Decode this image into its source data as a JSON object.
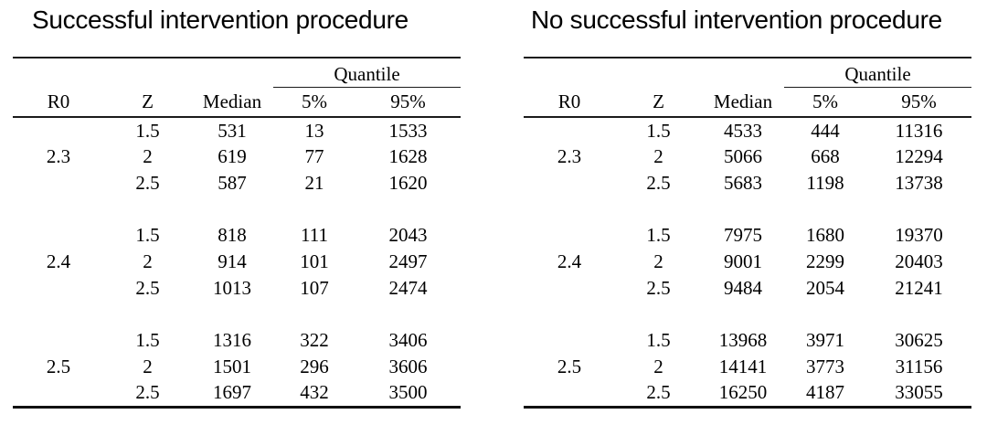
{
  "tables": [
    {
      "title": "Successful intervention procedure",
      "quantile_header": "Quantile",
      "columns": [
        "R0",
        "Z",
        "Median",
        "5%",
        "95%"
      ],
      "groups": [
        {
          "r0": "2.3",
          "rows": [
            [
              "1.5",
              "531",
              "13",
              "1533"
            ],
            [
              "2",
              "619",
              "77",
              "1628"
            ],
            [
              "2.5",
              "587",
              "21",
              "1620"
            ]
          ]
        },
        {
          "r0": "2.4",
          "rows": [
            [
              "1.5",
              "818",
              "111",
              "2043"
            ],
            [
              "2",
              "914",
              "101",
              "2497"
            ],
            [
              "2.5",
              "1013",
              "107",
              "2474"
            ]
          ]
        },
        {
          "r0": "2.5",
          "rows": [
            [
              "1.5",
              "1316",
              "322",
              "3406"
            ],
            [
              "2",
              "1501",
              "296",
              "3606"
            ],
            [
              "2.5",
              "1697",
              "432",
              "3500"
            ]
          ]
        }
      ]
    },
    {
      "title": "No successful intervention procedure",
      "quantile_header": "Quantile",
      "columns": [
        "R0",
        "Z",
        "Median",
        "5%",
        "95%"
      ],
      "groups": [
        {
          "r0": "2.3",
          "rows": [
            [
              "1.5",
              "4533",
              "444",
              "11316"
            ],
            [
              "2",
              "5066",
              "668",
              "12294"
            ],
            [
              "2.5",
              "5683",
              "1198",
              "13738"
            ]
          ]
        },
        {
          "r0": "2.4",
          "rows": [
            [
              "1.5",
              "7975",
              "1680",
              "19370"
            ],
            [
              "2",
              "9001",
              "2299",
              "20403"
            ],
            [
              "2.5",
              "9484",
              "2054",
              "21241"
            ]
          ]
        },
        {
          "r0": "2.5",
          "rows": [
            [
              "1.5",
              "13968",
              "3971",
              "30625"
            ],
            [
              "2",
              "14141",
              "3773",
              "31156"
            ],
            [
              "2.5",
              "16250",
              "4187",
              "33055"
            ]
          ]
        }
      ]
    }
  ],
  "colors": {
    "background": "#ffffff",
    "text": "#000000",
    "rule": "#1b1b1b"
  }
}
